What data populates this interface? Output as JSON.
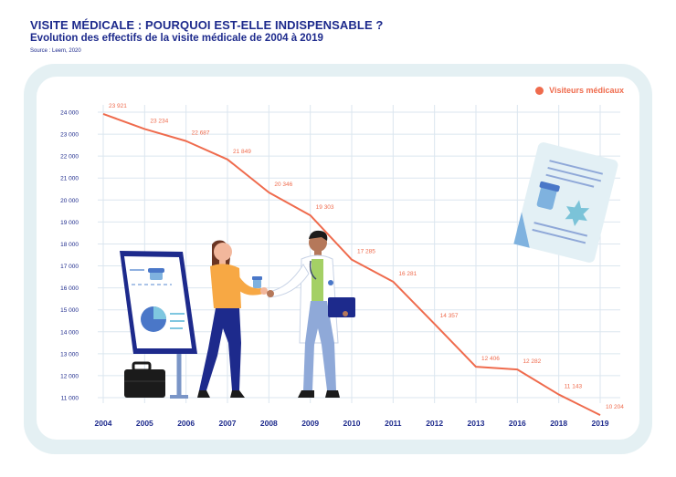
{
  "header": {
    "title": "VISITE MÉDICALE : POURQUOI EST-ELLE INDISPENSABLE ?",
    "subtitle": "Evolution des effectifs de la visite médicale de 2004 à 2019",
    "source": "Source : Leem, 2020"
  },
  "chart_data": {
    "type": "line",
    "title": "VISITE MÉDICALE : POURQUOI EST-ELLE INDISPENSABLE ?",
    "subtitle": "Evolution des effectifs de la visite médicale de 2004 à 2019",
    "xlabel": "",
    "ylabel": "",
    "categories": [
      "2004",
      "2005",
      "2006",
      "2007",
      "2008",
      "2009",
      "2010",
      "2011",
      "2012",
      "2013",
      "2016",
      "2018",
      "2019"
    ],
    "series": [
      {
        "name": "Visiteurs médicaux",
        "values": [
          23921,
          23234,
          22687,
          21849,
          20346,
          19303,
          17285,
          16281,
          14357,
          12406,
          12282,
          11143,
          10204
        ],
        "labels": [
          "23 921",
          "23 234",
          "22 687",
          "21 849",
          "20 346",
          "19 303",
          "17 285",
          "16 281",
          "14 357",
          "12 406",
          "12 282",
          "11 143",
          "10 204"
        ]
      }
    ],
    "ylim": [
      11000,
      24000
    ],
    "yticks": [
      24000,
      23000,
      22000,
      21000,
      20000,
      19000,
      18000,
      17000,
      16000,
      15000,
      14000,
      13000,
      12000,
      11000
    ],
    "ytick_labels": [
      "24 000",
      "23 000",
      "22 000",
      "21 000",
      "20 000",
      "19 000",
      "18 000",
      "17 000",
      "16 000",
      "15 000",
      "14 000",
      "13 000",
      "12 000",
      "11 000"
    ],
    "grid": true,
    "legend": "top-right",
    "colors": {
      "line": "#ef6b4d",
      "grid": "#dbe6ef",
      "axis_text": "#1d2a8c",
      "frame": "#e4f0f3"
    }
  },
  "illustrations": [
    {
      "name": "presentation-board-icon"
    },
    {
      "name": "briefcase-icon"
    },
    {
      "name": "patient-woman-icon"
    },
    {
      "name": "doctor-icon"
    },
    {
      "name": "prescription-document-icon"
    }
  ]
}
